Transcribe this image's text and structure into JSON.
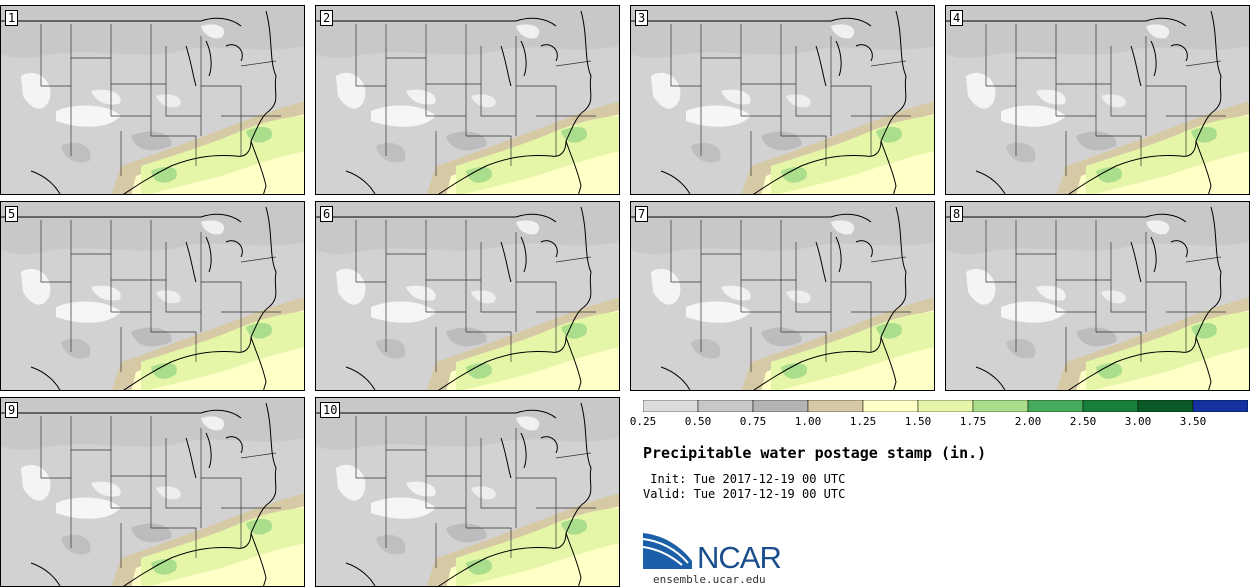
{
  "title": "Precipitable water postage stamp (in.)",
  "init_label": "Init:",
  "init_value": "Tue 2017-12-19 00 UTC",
  "valid_label": "Valid:",
  "valid_value": "Tue 2017-12-19 00 UTC",
  "logo_text": "NCAR",
  "site": "ensemble.ucar.edu",
  "members": [
    "1",
    "2",
    "3",
    "4",
    "5",
    "6",
    "7",
    "8",
    "9",
    "10"
  ],
  "colorbar": {
    "ticks": [
      "0.25",
      "0.50",
      "0.75",
      "1.00",
      "1.25",
      "1.50",
      "1.75",
      "2.00",
      "2.50",
      "3.00",
      "3.50"
    ],
    "colors": [
      "#dcdcdc",
      "#c8c8c8",
      "#b4b4b4",
      "#d6caa6",
      "#ffffc8",
      "#e6f6a8",
      "#aade8c",
      "#46ac5c",
      "#16803a",
      "#0a5a28",
      "#1432a0"
    ]
  }
}
